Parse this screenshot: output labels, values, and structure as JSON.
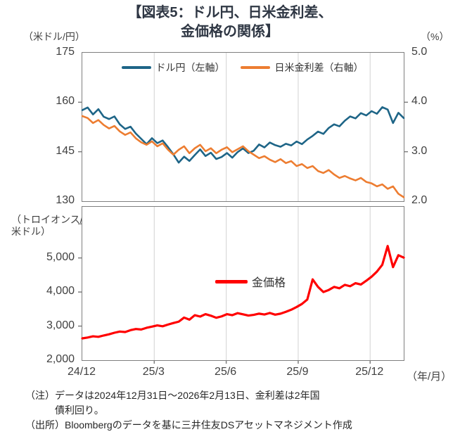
{
  "title": {
    "line1": "【図表5：ドル円、日米金利差、",
    "line2": "金価格の関係】"
  },
  "top_chart": {
    "unit_left": "（米ドル/円）",
    "unit_right": "（%）",
    "legend": [
      {
        "label": "ドル円（左軸）"
      },
      {
        "label": "日米金利差（右軸）"
      }
    ]
  },
  "bottom_chart": {
    "unit_left_line1": "（トロイオンス/",
    "unit_left_line2": "米ドル）",
    "legend": [
      {
        "label": "金価格"
      }
    ]
  },
  "x_axis": {
    "unit_label": "（年/月）"
  },
  "ui_ticks": {
    "top_left_labels": [
      "175",
      "160",
      "145",
      "130"
    ],
    "top_right_labels": [
      "5.0",
      "4.0",
      "3.0",
      "2.0"
    ],
    "bottom_left_labels": [
      "5,000",
      "4,000",
      "3,000",
      "2,000"
    ],
    "x_labels": [
      "24/12",
      "25/3",
      "25/6",
      "25/9",
      "25/12"
    ]
  },
  "notes": {
    "line1": "（注）データは2024年12月31日～2026年2月13日、金利差は2年国",
    "line2": "債利回り。",
    "line3": "（出所）Bloombergのデータを基に三井住友DSアセットマネジメント作成"
  },
  "colors": {
    "dollar_yen": "#1E6587",
    "rate_diff": "#ED7D31",
    "gold": "#FF0000",
    "grid": "#D9D9D9",
    "border": "#7F7F7F",
    "title_text": "#2F3744"
  },
  "chart_data": [
    {
      "type": "line",
      "title": "ドル円（左軸）と日米金利差（右軸）",
      "x_total_months": 13.4,
      "x_grid_months": [
        3,
        6,
        9,
        12
      ],
      "x_tick_months": [
        0,
        3,
        6,
        9,
        12
      ],
      "x_tick_labels": [
        "24/12",
        "25/3",
        "25/6",
        "25/9",
        "25/12"
      ],
      "x_unit": "年/月",
      "grid": "vertical-only",
      "legend_position": "top-center",
      "left_axis": {
        "label": "米ドル/円",
        "ylim": [
          130,
          175
        ],
        "ticks": [
          175,
          160,
          145,
          130
        ],
        "mark_ticks": [
          160,
          145
        ]
      },
      "right_axis": {
        "label": "%",
        "ylim": [
          2.0,
          5.0
        ],
        "ticks": [
          5.0,
          4.0,
          3.0,
          2.0
        ],
        "mark_ticks": [
          4.0,
          3.0
        ]
      },
      "series": [
        {
          "name": "ドル円（左軸）",
          "axis": "left",
          "color": "#1E6587",
          "values": [
            157.6,
            158.4,
            156.3,
            157.9,
            155.6,
            154.9,
            155.7,
            153.3,
            151.9,
            152.6,
            150.5,
            148.9,
            147.3,
            149.1,
            147.6,
            148.4,
            146.4,
            144.2,
            141.7,
            143.5,
            142.2,
            144.0,
            145.7,
            143.7,
            144.7,
            142.8,
            143.4,
            144.6,
            143.2,
            144.9,
            146.0,
            144.6,
            145.3,
            147.2,
            146.3,
            147.8,
            147.0,
            146.5,
            147.4,
            146.9,
            148.1,
            147.3,
            148.7,
            149.8,
            151.1,
            150.4,
            152.2,
            153.3,
            152.7,
            154.4,
            155.7,
            155.1,
            156.7,
            156.0,
            157.3,
            156.5,
            158.5,
            157.8,
            153.7,
            156.8,
            155.2
          ]
        },
        {
          "name": "日米金利差（右軸）",
          "axis": "right",
          "color": "#ED7D31",
          "values": [
            3.72,
            3.68,
            3.58,
            3.64,
            3.54,
            3.47,
            3.52,
            3.41,
            3.34,
            3.39,
            3.27,
            3.19,
            3.14,
            3.21,
            3.11,
            3.17,
            3.04,
            2.94,
            3.04,
            3.11,
            2.97,
            3.07,
            3.14,
            3.01,
            3.07,
            2.97,
            3.04,
            3.09,
            2.99,
            3.05,
            3.11,
            3.01,
            2.94,
            2.87,
            2.91,
            2.84,
            2.79,
            2.85,
            2.77,
            2.81,
            2.71,
            2.75,
            2.67,
            2.71,
            2.61,
            2.57,
            2.63,
            2.54,
            2.47,
            2.51,
            2.46,
            2.42,
            2.47,
            2.39,
            2.36,
            2.3,
            2.34,
            2.25,
            2.3,
            2.15,
            2.08
          ]
        }
      ]
    },
    {
      "type": "line",
      "title": "金価格",
      "x_total_months": 13.4,
      "x_grid_months": [
        3,
        6,
        9,
        12
      ],
      "grid": "vertical-only",
      "legend_position": "middle-left",
      "y_axis": {
        "label": "トロイオンス/米ドル",
        "ylim": [
          2000,
          6500
        ],
        "ticks": [
          5000,
          4000,
          3000,
          2000
        ],
        "mark_ticks": [
          6000,
          5000,
          4000,
          3000
        ]
      },
      "series": [
        {
          "name": "金価格",
          "color": "#FF0000",
          "values": [
            2640,
            2665,
            2700,
            2685,
            2725,
            2760,
            2805,
            2840,
            2825,
            2880,
            2915,
            2900,
            2950,
            2985,
            3020,
            2995,
            3045,
            3090,
            3130,
            3250,
            3190,
            3320,
            3280,
            3350,
            3305,
            3245,
            3285,
            3350,
            3320,
            3380,
            3345,
            3310,
            3330,
            3365,
            3340,
            3385,
            3335,
            3365,
            3420,
            3480,
            3560,
            3650,
            3780,
            4370,
            4150,
            4000,
            4060,
            4150,
            4110,
            4210,
            4170,
            4260,
            4220,
            4330,
            4450,
            4600,
            4800,
            5350,
            4730,
            5080,
            5010
          ]
        }
      ]
    }
  ]
}
